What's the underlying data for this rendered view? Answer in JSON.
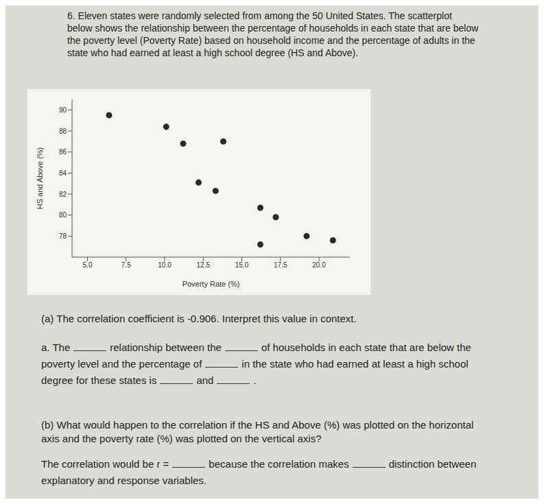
{
  "problem": {
    "number": "6.",
    "text": "Eleven states were randomly selected from among the 50 United States. The scatterplot below shows the relationship between the percentage of households in each state that are below the poverty level (Poverty Rate) based on household income and the percentage of adults in the state who had earned at least a high school degree (HS and Above)."
  },
  "chart_data": {
    "type": "scatter",
    "x_label": "Poverty Rate (%)",
    "y_label": "HS and Above (%)",
    "x": [
      6.4,
      10.1,
      11.2,
      13.8,
      12.2,
      13.3,
      16.2,
      17.2,
      16.2,
      19.2,
      20.9
    ],
    "values": [
      89.5,
      88.4,
      86.8,
      87.0,
      83.1,
      82.3,
      80.7,
      79.8,
      77.2,
      78.0,
      77.6
    ],
    "color": "#2a2a2a",
    "marker": "circle",
    "grid": false,
    "xlim": [
      4,
      22
    ],
    "xticks": [
      {
        "value": 5,
        "label": "5.0"
      },
      7.5,
      {
        "value": 10,
        "label": "10.0"
      },
      12.5,
      {
        "value": 15,
        "label": "15.0"
      },
      17.5,
      {
        "value": 20,
        "label": "20.0"
      }
    ],
    "ylim": [
      76,
      91
    ],
    "yticks": [
      78,
      80,
      82,
      84,
      86,
      88,
      90
    ]
  },
  "part_a": {
    "prompt": "(a) The correlation coefficient is -0.906. Interpret this value in context.",
    "answer_segments": [
      "a. The",
      "relationship between the",
      "of households in each state that are below the poverty level and the percentage of",
      "in the state who had earned at least a high school degree for these states is",
      "and",
      "."
    ]
  },
  "part_b": {
    "prompt": "(b) What would happen to the correlation if the HS and Above (%) was plotted on the horizontal axis and the poverty rate (%) was plotted on the vertical axis?",
    "answer_segments": [
      "The correlation would be r =",
      "because the correlation makes",
      "distinction between explanatory and response variables."
    ]
  }
}
